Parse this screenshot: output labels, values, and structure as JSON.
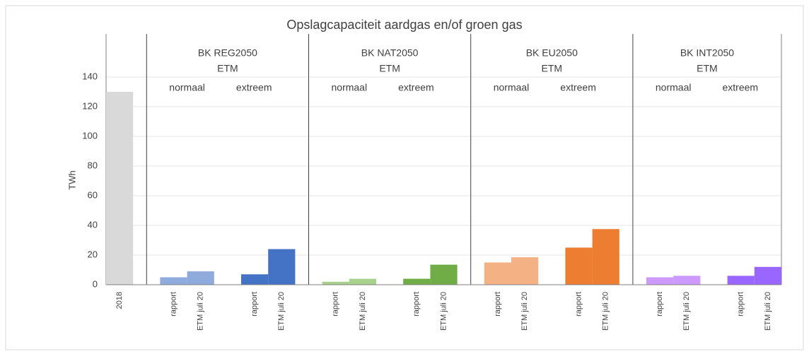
{
  "chart_data": {
    "type": "bar",
    "title": "Opslagcapaciteit aardgas en/of groen gas",
    "y_label": "TWh",
    "categories": [
      "2018",
      null,
      "rapport",
      "ETM juli 20",
      null,
      "rapport",
      "ETM juli 20",
      null,
      "rapport",
      "ETM juli 20",
      null,
      "rapport",
      "ETM juli 20",
      null,
      "rapport",
      "ETM juli 20",
      null,
      "rapport",
      "ETM juli 20",
      null,
      "rapport",
      "ETM juli 20",
      null,
      "rapport",
      "ETM juli 20"
    ],
    "values": [
      130,
      null,
      5,
      9,
      null,
      7,
      24,
      null,
      2,
      4,
      null,
      4,
      13.5,
      null,
      15,
      18.5,
      null,
      25,
      37.5,
      null,
      5,
      6,
      null,
      6,
      12
    ],
    "colors": [
      "#d9d9d9",
      null,
      "#8faadc",
      "#8faadc",
      null,
      "#4472c4",
      "#4472c4",
      null,
      "#a9d18e",
      "#a9d18e",
      null,
      "#70ad47",
      "#70ad47",
      null,
      "#f4b183",
      "#f4b183",
      null,
      "#ed7d31",
      "#ed7d31",
      null,
      "#cc99ff",
      "#cc99ff",
      null,
      "#9966ff",
      "#9966ff"
    ],
    "groups": [
      {
        "title": "BK REG2050",
        "subtitle": "ETM",
        "labels": [
          "normaal",
          "extreem"
        ]
      },
      {
        "title": "BK NAT2050",
        "subtitle": "ETM",
        "labels": [
          "normaal",
          "extreem"
        ]
      },
      {
        "title": "BK EU2050",
        "subtitle": "ETM",
        "labels": [
          "normaal",
          "extreem"
        ]
      },
      {
        "title": "BK INT2050",
        "subtitle": "ETM",
        "labels": [
          "normaal",
          "extreem"
        ]
      }
    ],
    "ylim": [
      0,
      160
    ],
    "yticks": [
      0,
      20,
      40,
      60,
      80,
      100,
      120,
      140
    ],
    "grid": true
  }
}
